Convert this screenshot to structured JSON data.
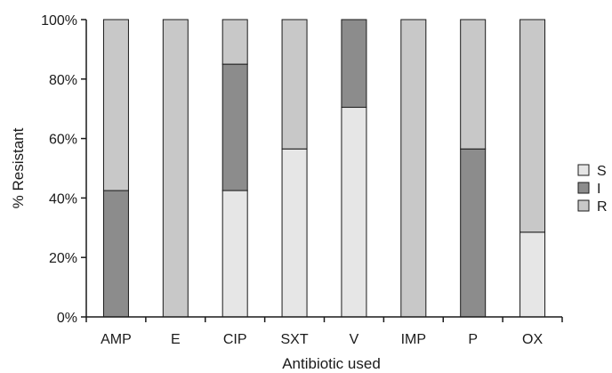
{
  "chart_data": {
    "type": "bar",
    "stacked": true,
    "title": "",
    "xlabel": "Antibiotic used",
    "ylabel": "% Resistant",
    "ylim": [
      0,
      100
    ],
    "y_ticks": [
      "0%",
      "20%",
      "40%",
      "60%",
      "80%",
      "100%"
    ],
    "grid": false,
    "legend_position": "right",
    "categories": [
      "AMP",
      "E",
      "CIP",
      "SXT",
      "V",
      "IMP",
      "P",
      "OX"
    ],
    "series": [
      {
        "name": "S",
        "color": "#e6e6e6",
        "values": [
          0,
          0,
          42.5,
          56.5,
          70.5,
          0,
          0,
          28.5
        ]
      },
      {
        "name": "I",
        "color": "#8c8c8c",
        "values": [
          42.5,
          0,
          42.5,
          0,
          29.5,
          0,
          56.5,
          0
        ]
      },
      {
        "name": "R",
        "color": "#c8c8c8",
        "values": [
          57.5,
          100,
          15,
          43.5,
          0,
          100,
          43.5,
          71.5
        ]
      }
    ]
  }
}
